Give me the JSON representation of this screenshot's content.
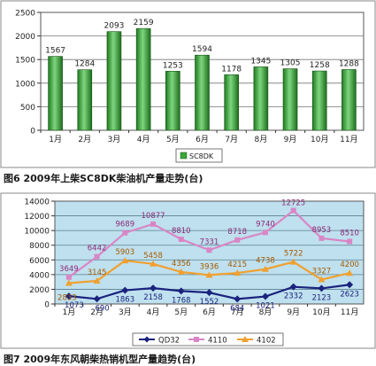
{
  "captions": {
    "chart1": "图6 2009年上柴SC8DK柴油机产量走势(台)",
    "chart2": "图7 2009年东风朝柴热销机型产量趋势(台)"
  },
  "colors": {
    "bar_fill": "#3aa83a",
    "plot_bg_chart2": "#bfe0ee",
    "qd32": "#1a237e",
    "s4110": "#d986c6",
    "s4102": "#f0a030"
  },
  "chart_data": [
    {
      "type": "bar",
      "title": "",
      "categories": [
        "1月",
        "2月",
        "3月",
        "4月",
        "5月",
        "6月",
        "7月",
        "8月",
        "9月",
        "10月",
        "11月"
      ],
      "series": [
        {
          "name": "SC8DK",
          "values": [
            1567,
            1284,
            2093,
            2159,
            1253,
            1594,
            1178,
            1345,
            1305,
            1258,
            1288
          ]
        }
      ],
      "yticks": [
        "0",
        "500",
        "1000",
        "1500",
        "2000",
        "2500"
      ],
      "ylim": [
        0,
        2500
      ],
      "grid": true,
      "legend": "bottom"
    },
    {
      "type": "line",
      "title": "",
      "categories": [
        "1月",
        "2月",
        "3月",
        "4月",
        "5月",
        "6月",
        "7月",
        "8月",
        "9月",
        "10月",
        "11月"
      ],
      "series": [
        {
          "name": "QD32",
          "values": [
            1073,
            690,
            1863,
            2158,
            1768,
            1552,
            684,
            1021,
            2332,
            2123,
            2623
          ]
        },
        {
          "name": "4110",
          "values": [
            3649,
            6442,
            9689,
            10877,
            8810,
            7331,
            8718,
            9740,
            12725,
            8953,
            8510
          ]
        },
        {
          "name": "4102",
          "values": [
            2833,
            3145,
            5903,
            5458,
            4356,
            3936,
            4215,
            4738,
            5722,
            3327,
            4200
          ]
        }
      ],
      "yticks": [
        "0",
        "2000",
        "4000",
        "6000",
        "8000",
        "10000",
        "12000",
        "14000"
      ],
      "ylim": [
        0,
        14000
      ],
      "grid": true,
      "legend": "bottom"
    }
  ]
}
